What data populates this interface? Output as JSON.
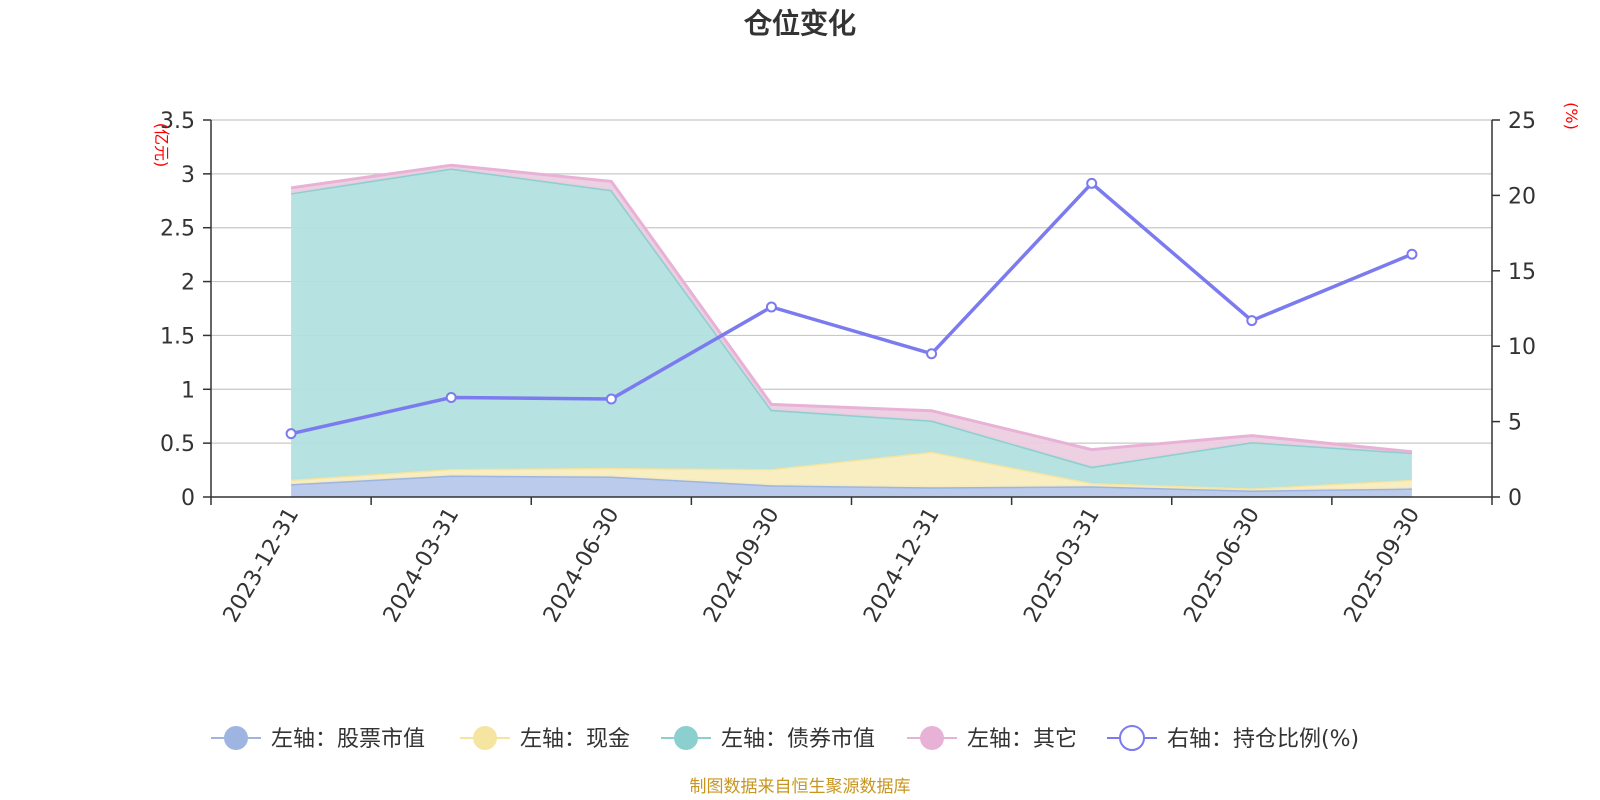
{
  "chart_data": {
    "type": "area",
    "title": "仓位变化",
    "categories": [
      "2023-12-31",
      "2024-03-31",
      "2024-06-30",
      "2024-09-30",
      "2024-12-31",
      "2025-03-31",
      "2025-06-30",
      "2025-09-30"
    ],
    "left_axis": {
      "unit": "(亿元)",
      "ylim": [
        0,
        3.5
      ],
      "ticks": [
        "0",
        "0.5",
        "1",
        "1.5",
        "2",
        "2.5",
        "3",
        "3.5"
      ]
    },
    "right_axis": {
      "unit": "(%)",
      "ylim": [
        0,
        25
      ],
      "ticks": [
        "0",
        "5",
        "10",
        "15",
        "20",
        "25"
      ]
    },
    "series": [
      {
        "name": "左轴：股票市值",
        "axis": "left",
        "stacked": true,
        "color": "#9db5e0",
        "fill": "#b7c8eb",
        "values": [
          0.12,
          0.2,
          0.19,
          0.11,
          0.09,
          0.1,
          0.06,
          0.08
        ]
      },
      {
        "name": "左轴：现金",
        "axis": "left",
        "stacked": true,
        "color": "#f6e5a0",
        "fill": "#f8edbf",
        "values": [
          0.04,
          0.06,
          0.08,
          0.15,
          0.33,
          0.03,
          0.02,
          0.08
        ]
      },
      {
        "name": "左轴：债券市值",
        "axis": "left",
        "stacked": true,
        "color": "#8ccfcf",
        "fill": "#b3e0e0",
        "values": [
          2.66,
          2.79,
          2.58,
          0.55,
          0.29,
          0.15,
          0.43,
          0.25
        ]
      },
      {
        "name": "左轴：其它",
        "axis": "left",
        "stacked": true,
        "color": "#e8b2d6",
        "fill": "#edcde2",
        "values": [
          0.05,
          0.03,
          0.08,
          0.05,
          0.09,
          0.16,
          0.06,
          0.01
        ]
      },
      {
        "name": "右轴：持仓比例(%)",
        "axis": "right",
        "stacked": false,
        "color": "#7b7bef",
        "values": [
          4.2,
          6.6,
          6.5,
          12.6,
          9.5,
          20.8,
          11.7,
          16.1
        ]
      }
    ],
    "grid": true,
    "legend_position": "bottom"
  },
  "source": "制图数据来自恒生聚源数据库"
}
